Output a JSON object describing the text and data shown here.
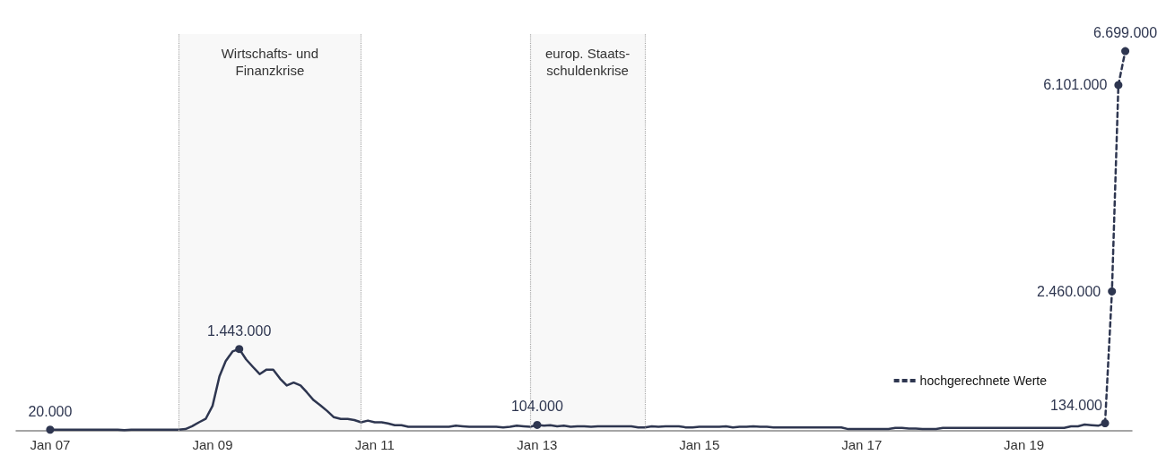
{
  "chart_data": {
    "type": "line",
    "legend": "bottom right",
    "grid": false,
    "xlim": [
      "2006-08",
      "2020-05"
    ],
    "ylim": [
      0,
      7000000
    ],
    "xticks": [
      {
        "value": "2007-01",
        "label": "Jan 07"
      },
      {
        "value": "2009-01",
        "label": "Jan 09"
      },
      {
        "value": "2011-01",
        "label": "Jan 11"
      },
      {
        "value": "2013-01",
        "label": "Jan 13"
      },
      {
        "value": "2015-01",
        "label": "Jan 15"
      },
      {
        "value": "2017-01",
        "label": "Jan 17"
      },
      {
        "value": "2019-01",
        "label": "Jan 19"
      }
    ],
    "tick_labels": "x",
    "bands": [
      {
        "axis": "x",
        "from": "2008-08",
        "to": "2010-11",
        "label": "Wirtschafts- und\nFinanzkrise",
        "color": "#aaaaaa"
      },
      {
        "axis": "x",
        "from": "2012-12",
        "to": "2014-05",
        "label": "europ. Staats-\nschuldenkrise",
        "color": "#aaaaaa"
      }
    ],
    "series": [
      {
        "color": "#2e3650",
        "line_style": "solid",
        "x": [
          "2007-01",
          "2007-02",
          "2007-03",
          "2007-04",
          "2007-05",
          "2007-06",
          "2007-07",
          "2007-08",
          "2007-09",
          "2007-10",
          "2007-11",
          "2007-12",
          "2008-01",
          "2008-02",
          "2008-03",
          "2008-04",
          "2008-05",
          "2008-06",
          "2008-07",
          "2008-08",
          "2008-09",
          "2008-10",
          "2008-11",
          "2008-12",
          "2009-01",
          "2009-02",
          "2009-03",
          "2009-04",
          "2009-05",
          "2009-06",
          "2009-07",
          "2009-08",
          "2009-09",
          "2009-10",
          "2009-11",
          "2009-12",
          "2010-01",
          "2010-02",
          "2010-03",
          "2010-04",
          "2010-05",
          "2010-06",
          "2010-07",
          "2010-08",
          "2010-09",
          "2010-10",
          "2010-11",
          "2010-12",
          "2011-01",
          "2011-02",
          "2011-03",
          "2011-04",
          "2011-05",
          "2011-06",
          "2011-07",
          "2011-08",
          "2011-09",
          "2011-10",
          "2011-11",
          "2011-12",
          "2012-01",
          "2012-02",
          "2012-03",
          "2012-04",
          "2012-05",
          "2012-06",
          "2012-07",
          "2012-08",
          "2012-09",
          "2012-10",
          "2012-11",
          "2012-12",
          "2013-01",
          "2013-02",
          "2013-03",
          "2013-04",
          "2013-05",
          "2013-06",
          "2013-07",
          "2013-08",
          "2013-09",
          "2013-10",
          "2013-11",
          "2013-12",
          "2014-01",
          "2014-02",
          "2014-03",
          "2014-04",
          "2014-05",
          "2014-06",
          "2014-07",
          "2014-08",
          "2014-09",
          "2014-10",
          "2014-11",
          "2014-12",
          "2015-01",
          "2015-02",
          "2015-03",
          "2015-04",
          "2015-05",
          "2015-06",
          "2015-07",
          "2015-08",
          "2015-09",
          "2015-10",
          "2015-11",
          "2015-12",
          "2016-01",
          "2016-02",
          "2016-03",
          "2016-04",
          "2016-05",
          "2016-06",
          "2016-07",
          "2016-08",
          "2016-09",
          "2016-10",
          "2016-11",
          "2016-12",
          "2017-01",
          "2017-02",
          "2017-03",
          "2017-04",
          "2017-05",
          "2017-06",
          "2017-07",
          "2017-08",
          "2017-09",
          "2017-10",
          "2017-11",
          "2017-12",
          "2018-01",
          "2018-02",
          "2018-03",
          "2018-04",
          "2018-05",
          "2018-06",
          "2018-07",
          "2018-08",
          "2018-09",
          "2018-10",
          "2018-11",
          "2018-12",
          "2019-01",
          "2019-02",
          "2019-03",
          "2019-04",
          "2019-05",
          "2019-06",
          "2019-07",
          "2019-08",
          "2019-09",
          "2019-10",
          "2019-11",
          "2019-12",
          "2020-01"
        ],
        "values": [
          20000,
          20000,
          20000,
          20000,
          20000,
          20000,
          20000,
          20000,
          20000,
          20000,
          20000,
          10000,
          20000,
          20000,
          20000,
          20000,
          20000,
          20000,
          20000,
          20000,
          30000,
          80000,
          150000,
          210000,
          440000,
          960000,
          1230000,
          1400000,
          1443000,
          1260000,
          1130000,
          1000000,
          1080000,
          1080000,
          920000,
          800000,
          850000,
          800000,
          680000,
          540000,
          450000,
          350000,
          240000,
          210000,
          210000,
          190000,
          150000,
          180000,
          150000,
          150000,
          130000,
          100000,
          100000,
          70000,
          70000,
          70000,
          70000,
          70000,
          70000,
          70000,
          90000,
          80000,
          70000,
          70000,
          70000,
          70000,
          70000,
          60000,
          70000,
          90000,
          80000,
          70000,
          104000,
          90000,
          100000,
          80000,
          90000,
          70000,
          80000,
          80000,
          70000,
          80000,
          80000,
          80000,
          80000,
          80000,
          80000,
          60000,
          60000,
          80000,
          70000,
          80000,
          80000,
          80000,
          60000,
          60000,
          70000,
          70000,
          70000,
          70000,
          80000,
          60000,
          70000,
          70000,
          80000,
          70000,
          70000,
          60000,
          60000,
          60000,
          60000,
          60000,
          60000,
          60000,
          60000,
          60000,
          60000,
          60000,
          30000,
          30000,
          30000,
          30000,
          30000,
          30000,
          30000,
          50000,
          50000,
          40000,
          40000,
          30000,
          30000,
          30000,
          50000,
          50000,
          50000,
          50000,
          50000,
          50000,
          50000,
          50000,
          50000,
          50000,
          50000,
          50000,
          50000,
          50000,
          50000,
          50000,
          50000,
          50000,
          50000,
          80000,
          80000,
          110000,
          100000,
          90000,
          134000
        ],
        "value_labels": [
          "20.000",
          null,
          null,
          null,
          null,
          null,
          null,
          null,
          null,
          null,
          null,
          null,
          null,
          null,
          null,
          null,
          null,
          null,
          null,
          null,
          null,
          null,
          null,
          null,
          null,
          null,
          null,
          null,
          "1.443.000",
          null,
          null,
          null,
          null,
          null,
          null,
          null,
          null,
          null,
          null,
          null,
          null,
          null,
          null,
          null,
          null,
          null,
          null,
          null,
          null,
          null,
          null,
          null,
          null,
          null,
          null,
          null,
          null,
          null,
          null,
          null,
          null,
          null,
          null,
          null,
          null,
          null,
          null,
          null,
          null,
          null,
          null,
          null,
          "104.000",
          null,
          null,
          null,
          null,
          null,
          null,
          null,
          null,
          null,
          null,
          null,
          null,
          null,
          null,
          null,
          null,
          null,
          null,
          null,
          null,
          null,
          null,
          null,
          null,
          null,
          null,
          null,
          null,
          null,
          null,
          null,
          null,
          null,
          null,
          null,
          null,
          null,
          null,
          null,
          null,
          null,
          null,
          null,
          null,
          null,
          null,
          null,
          null,
          null,
          null,
          null,
          null,
          null,
          null,
          null,
          null,
          null,
          null,
          null,
          null,
          null,
          null,
          null,
          null,
          null,
          null,
          null,
          null,
          null,
          null,
          null,
          null,
          null,
          null,
          null,
          null,
          null,
          null,
          null,
          null,
          null,
          null,
          null,
          "134.000"
        ]
      },
      {
        "name": "hochgerechnete Werte",
        "color": "#2e3650",
        "line_style": "dashed",
        "x": [
          "2020-01",
          "2020-02",
          "2020-03",
          "2020-04"
        ],
        "values": [
          134000,
          2460000,
          6101000,
          6699000
        ],
        "value_labels": [
          null,
          "2.460.000",
          "6.101.000",
          "6.699.000"
        ]
      }
    ]
  }
}
